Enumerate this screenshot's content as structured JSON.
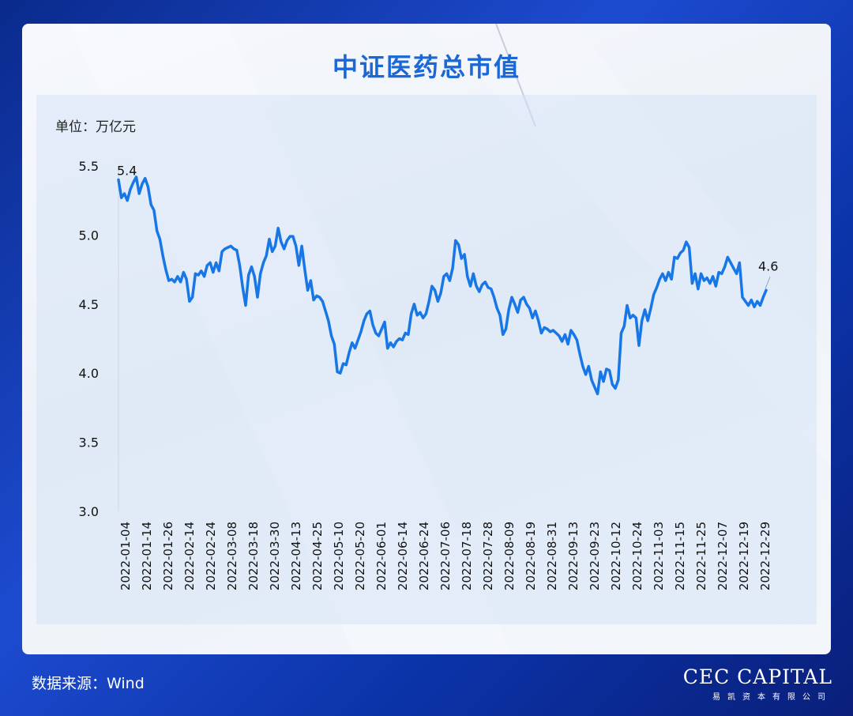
{
  "header": {
    "title": "中证医药总市值"
  },
  "unit_label": "单位：万亿元",
  "footer": {
    "source": "数据来源：Wind"
  },
  "logo": {
    "brand": "CEC CAPITAL",
    "sub": "易凯资本有限公司"
  },
  "colors": {
    "line": "#1877e6",
    "title": "#1a67d6",
    "background": "#0b33a8"
  },
  "chart_data": {
    "type": "line",
    "title": "中证医药总市值",
    "ylabel": "单位：万亿元",
    "ylim": [
      3.0,
      5.5
    ],
    "yticks": [
      "5.5",
      "5.0",
      "4.5",
      "4.0",
      "3.5",
      "3.0"
    ],
    "xticks": [
      "2022-01-04",
      "2022-01-14",
      "2022-01-26",
      "2022-02-14",
      "2022-02-24",
      "2022-03-08",
      "2022-03-18",
      "2022-03-30",
      "2022-04-13",
      "2022-04-25",
      "2022-05-10",
      "2022-05-20",
      "2022-06-01",
      "2022-06-14",
      "2022-06-24",
      "2022-07-06",
      "2022-07-18",
      "2022-07-28",
      "2022-08-09",
      "2022-08-19",
      "2022-08-31",
      "2022-09-13",
      "2022-09-23",
      "2022-10-12",
      "2022-10-24",
      "2022-11-03",
      "2022-11-15",
      "2022-11-25",
      "2022-12-07",
      "2022-12-19",
      "2022-12-29"
    ],
    "annotations": [
      {
        "text": "5.4",
        "point": "first"
      },
      {
        "text": "4.6",
        "point": "last"
      }
    ],
    "series": [
      {
        "values": [
          5.4,
          5.27,
          5.3,
          5.25,
          5.33,
          5.38,
          5.42,
          5.3,
          5.37,
          5.41,
          5.35,
          5.22,
          5.18,
          5.03,
          4.97,
          4.85,
          4.75,
          4.67,
          4.68,
          4.66,
          4.7,
          4.66,
          4.73,
          4.68,
          4.52,
          4.55,
          4.72,
          4.71,
          4.74,
          4.7,
          4.78,
          4.8,
          4.73,
          4.8,
          4.74,
          4.88,
          4.9,
          4.91,
          4.92,
          4.9,
          4.89,
          4.78,
          4.62,
          4.49,
          4.71,
          4.77,
          4.7,
          4.55,
          4.72,
          4.8,
          4.85,
          4.97,
          4.88,
          4.92,
          5.05,
          4.95,
          4.9,
          4.96,
          4.99,
          4.99,
          4.92,
          4.78,
          4.92,
          4.75,
          4.6,
          4.67,
          4.53,
          4.56,
          4.55,
          4.52,
          4.45,
          4.38,
          4.27,
          4.21,
          4.01,
          4.0,
          4.07,
          4.06,
          4.15,
          4.22,
          4.18,
          4.24,
          4.3,
          4.38,
          4.43,
          4.45,
          4.35,
          4.29,
          4.27,
          4.32,
          4.37,
          4.18,
          4.22,
          4.19,
          4.23,
          4.25,
          4.24,
          4.29,
          4.28,
          4.43,
          4.5,
          4.42,
          4.44,
          4.4,
          4.43,
          4.52,
          4.63,
          4.6,
          4.52,
          4.58,
          4.7,
          4.72,
          4.67,
          4.76,
          4.96,
          4.93,
          4.83,
          4.86,
          4.7,
          4.63,
          4.72,
          4.63,
          4.59,
          4.64,
          4.66,
          4.62,
          4.61,
          4.55,
          4.47,
          4.42,
          4.28,
          4.32,
          4.46,
          4.55,
          4.5,
          4.44,
          4.53,
          4.55,
          4.5,
          4.47,
          4.4,
          4.45,
          4.38,
          4.29,
          4.33,
          4.32,
          4.3,
          4.31,
          4.29,
          4.27,
          4.23,
          4.28,
          4.21,
          4.31,
          4.28,
          4.24,
          4.14,
          4.05,
          3.99,
          4.05,
          3.95,
          3.9,
          3.85,
          4.01,
          3.94,
          4.03,
          4.02,
          3.92,
          3.89,
          3.95,
          4.29,
          4.34,
          4.49,
          4.4,
          4.42,
          4.4,
          4.2,
          4.38,
          4.46,
          4.38,
          4.47,
          4.57,
          4.62,
          4.68,
          4.72,
          4.67,
          4.73,
          4.68,
          4.84,
          4.83,
          4.87,
          4.89,
          4.95,
          4.91,
          4.65,
          4.72,
          4.61,
          4.72,
          4.67,
          4.69,
          4.65,
          4.7,
          4.63,
          4.73,
          4.72,
          4.77,
          4.84,
          4.8,
          4.76,
          4.72,
          4.8,
          4.55,
          4.52,
          4.49,
          4.53,
          4.48,
          4.52,
          4.49,
          4.55,
          4.6
        ]
      }
    ]
  }
}
